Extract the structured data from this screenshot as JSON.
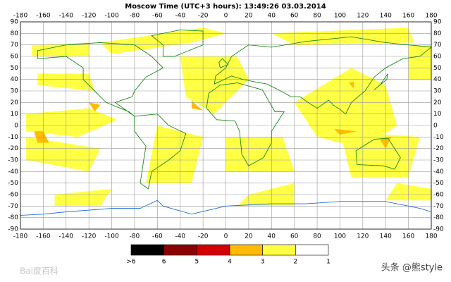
{
  "title": "Moscow Time (UTC+3 hours): 13:49:26   03.03.2014",
  "xlim": [
    -180,
    180
  ],
  "ylim": [
    -90,
    90
  ],
  "xticks": [
    -180,
    -160,
    -140,
    -120,
    -100,
    -80,
    -60,
    -40,
    -20,
    0,
    20,
    40,
    60,
    80,
    100,
    120,
    140,
    160,
    180
  ],
  "yticks": [
    90,
    80,
    70,
    60,
    50,
    40,
    30,
    20,
    10,
    0,
    -10,
    -20,
    -30,
    -40,
    -50,
    -60,
    -70,
    -80,
    -90
  ],
  "legend": {
    "labels": [
      ">6",
      "6",
      "5",
      "4",
      "3",
      "2",
      "1"
    ],
    "colors": [
      "#000000",
      "#8b0000",
      "#d40000",
      "#ffbb00",
      "#ffff44",
      "#ffffff"
    ]
  },
  "watermarks": [
    "Bai度百科",
    "头条 @熊style"
  ]
}
